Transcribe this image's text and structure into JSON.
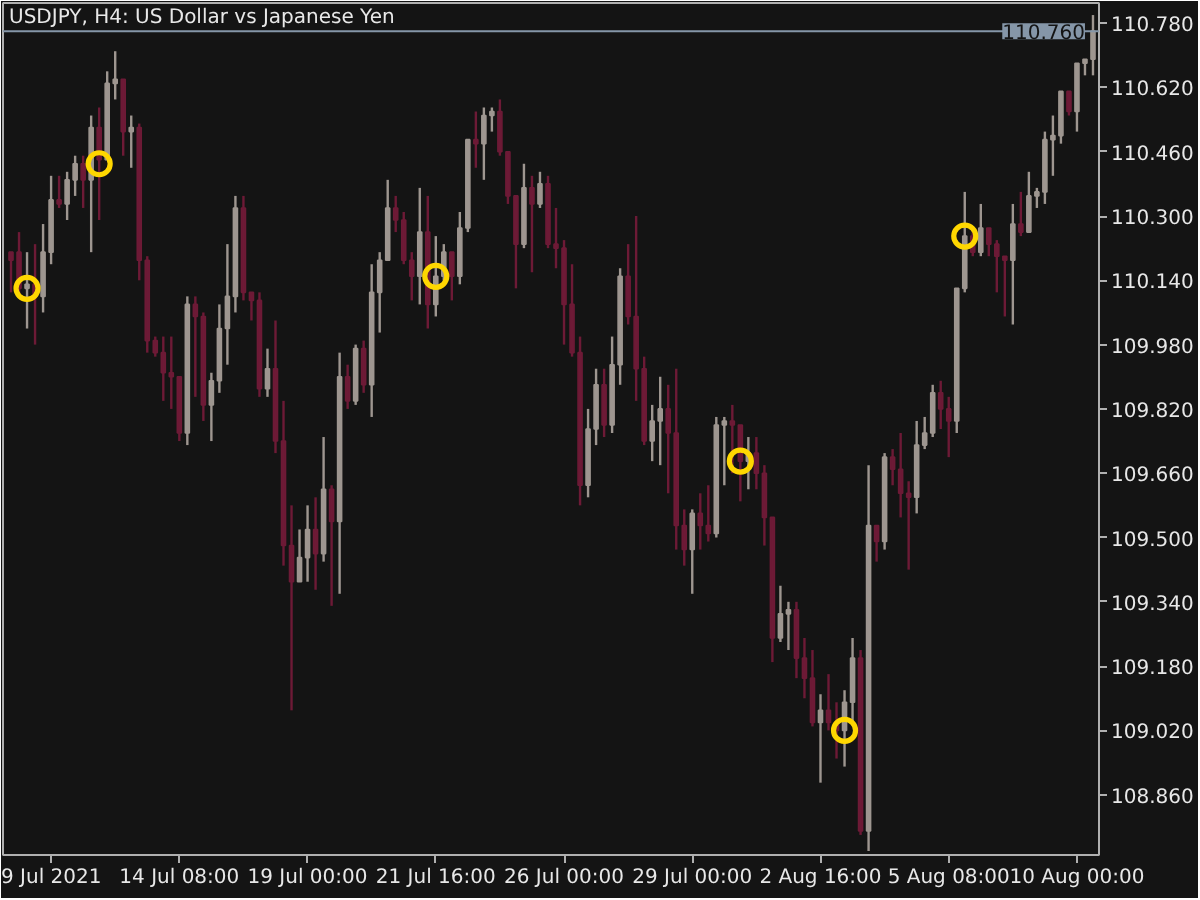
{
  "chart_data": {
    "type": "candlestick",
    "title": "USDJPY, H4:  US Dollar vs Japanese Yen",
    "categories": [
      null,
      null,
      null,
      null,
      null,
      "9 Jul 2021",
      null,
      null,
      null,
      null,
      null,
      null,
      null,
      null,
      null,
      null,
      null,
      null,
      null,
      null,
      null,
      "14 Jul 08:00",
      null,
      null,
      null,
      null,
      null,
      null,
      null,
      null,
      null,
      null,
      null,
      null,
      null,
      null,
      null,
      "19 Jul 00:00",
      null,
      null,
      null,
      null,
      null,
      null,
      null,
      null,
      null,
      null,
      null,
      null,
      null,
      null,
      null,
      "21 Jul 16:00",
      null,
      null,
      null,
      null,
      null,
      null,
      null,
      null,
      null,
      null,
      null,
      null,
      null,
      null,
      null,
      "26 Jul 00:00",
      null,
      null,
      null,
      null,
      null,
      null,
      null,
      null,
      null,
      null,
      null,
      null,
      null,
      null,
      null,
      "29 Jul 00:00",
      null,
      null,
      null,
      null,
      null,
      null,
      null,
      null,
      null,
      null,
      null,
      null,
      null,
      null,
      null,
      "2 Aug 16:00",
      null,
      null,
      null,
      null,
      null,
      null,
      null,
      null,
      null,
      null,
      null,
      null,
      null,
      null,
      null,
      "5 Aug 08:00",
      null,
      null,
      null,
      null,
      null,
      null,
      null,
      null,
      null,
      null,
      null,
      null,
      null,
      null,
      null,
      "10 Aug 00:00",
      null,
      null
    ],
    "ohlc": [
      [
        110.21,
        110.21,
        110.11,
        110.19
      ],
      [
        110.21,
        110.26,
        110.1,
        110.12
      ],
      [
        110.12,
        110.21,
        110.02,
        110.13
      ],
      [
        110.13,
        110.23,
        109.98,
        110.1
      ],
      [
        110.1,
        110.28,
        110.06,
        110.21
      ],
      [
        110.21,
        110.4,
        110.18,
        110.34
      ],
      [
        110.34,
        110.4,
        110.32,
        110.33
      ],
      [
        110.33,
        110.41,
        110.29,
        110.39
      ],
      [
        110.39,
        110.45,
        110.35,
        110.43
      ],
      [
        110.43,
        110.45,
        110.32,
        110.39
      ],
      [
        110.39,
        110.55,
        110.21,
        110.52
      ],
      [
        110.52,
        110.57,
        110.29,
        110.44
      ],
      [
        110.44,
        110.66,
        110.44,
        110.63
      ],
      [
        110.63,
        110.71,
        110.59,
        110.64
      ],
      [
        110.64,
        110.64,
        110.45,
        110.51
      ],
      [
        110.51,
        110.55,
        110.42,
        110.52
      ],
      [
        110.52,
        110.53,
        110.14,
        110.19
      ],
      [
        110.19,
        110.2,
        109.96,
        109.99
      ],
      [
        109.99,
        110.0,
        109.95,
        109.96
      ],
      [
        109.96,
        110.0,
        109.84,
        109.91
      ],
      [
        109.91,
        110.0,
        109.82,
        109.9
      ],
      [
        109.9,
        109.9,
        109.74,
        109.76
      ],
      [
        109.76,
        110.1,
        109.73,
        110.08
      ],
      [
        110.08,
        110.1,
        109.85,
        110.05
      ],
      [
        110.05,
        110.06,
        109.79,
        109.83
      ],
      [
        109.83,
        109.91,
        109.74,
        109.89
      ],
      [
        109.89,
        110.08,
        109.86,
        110.02
      ],
      [
        110.02,
        110.23,
        109.93,
        110.1
      ],
      [
        110.1,
        110.35,
        110.06,
        110.32
      ],
      [
        110.32,
        110.35,
        110.09,
        110.11
      ],
      [
        110.11,
        110.11,
        110.04,
        110.09
      ],
      [
        110.09,
        110.11,
        109.85,
        109.87
      ],
      [
        109.87,
        109.97,
        109.85,
        109.92
      ],
      [
        109.92,
        110.04,
        109.71,
        109.74
      ],
      [
        109.74,
        109.84,
        109.43,
        109.48
      ],
      [
        109.48,
        109.58,
        109.07,
        109.39
      ],
      [
        109.39,
        109.52,
        109.39,
        109.45
      ],
      [
        109.45,
        109.58,
        109.39,
        109.52
      ],
      [
        109.52,
        109.6,
        109.37,
        109.46
      ],
      [
        109.46,
        109.75,
        109.44,
        109.62
      ],
      [
        109.62,
        109.63,
        109.33,
        109.54
      ],
      [
        109.54,
        109.96,
        109.36,
        109.9
      ],
      [
        109.9,
        109.93,
        109.82,
        109.84
      ],
      [
        109.84,
        109.98,
        109.83,
        109.97
      ],
      [
        109.97,
        109.99,
        109.86,
        109.88
      ],
      [
        109.88,
        110.18,
        109.8,
        110.11
      ],
      [
        110.11,
        110.21,
        110.01,
        110.19
      ],
      [
        110.19,
        110.39,
        110.19,
        110.32
      ],
      [
        110.32,
        110.35,
        110.26,
        110.29
      ],
      [
        110.29,
        110.31,
        110.18,
        110.19
      ],
      [
        110.19,
        110.21,
        110.09,
        110.15
      ],
      [
        110.15,
        110.37,
        110.08,
        110.26
      ],
      [
        110.26,
        110.35,
        110.02,
        110.08
      ],
      [
        110.08,
        110.25,
        110.05,
        110.15
      ],
      [
        110.15,
        110.23,
        110.14,
        110.21
      ],
      [
        110.21,
        110.21,
        110.09,
        110.15
      ],
      [
        110.15,
        110.31,
        110.13,
        110.27
      ],
      [
        110.27,
        110.49,
        110.26,
        110.49
      ],
      [
        110.49,
        110.56,
        110.42,
        110.48
      ],
      [
        110.48,
        110.57,
        110.39,
        110.55
      ],
      [
        110.55,
        110.57,
        110.51,
        110.56
      ],
      [
        110.56,
        110.59,
        110.45,
        110.46
      ],
      [
        110.46,
        110.46,
        110.33,
        110.35
      ],
      [
        110.35,
        110.35,
        110.12,
        110.23
      ],
      [
        110.23,
        110.43,
        110.22,
        110.37
      ],
      [
        110.37,
        110.4,
        110.16,
        110.33
      ],
      [
        110.33,
        110.41,
        110.32,
        110.38
      ],
      [
        110.38,
        110.4,
        110.22,
        110.23
      ],
      [
        110.23,
        110.32,
        110.17,
        110.22
      ],
      [
        110.22,
        110.24,
        109.98,
        110.08
      ],
      [
        110.08,
        110.18,
        109.95,
        109.96
      ],
      [
        109.96,
        110.0,
        109.58,
        109.63
      ],
      [
        109.63,
        109.82,
        109.6,
        109.77
      ],
      [
        109.77,
        109.92,
        109.73,
        109.88
      ],
      [
        109.88,
        109.92,
        109.75,
        109.78
      ],
      [
        109.78,
        110.0,
        109.76,
        109.93
      ],
      [
        109.93,
        110.17,
        109.88,
        110.15
      ],
      [
        110.15,
        110.23,
        110.03,
        110.05
      ],
      [
        110.05,
        110.3,
        109.84,
        109.92
      ],
      [
        109.92,
        109.95,
        109.73,
        109.74
      ],
      [
        109.74,
        109.83,
        109.69,
        109.79
      ],
      [
        109.79,
        109.9,
        109.68,
        109.82
      ],
      [
        109.82,
        109.88,
        109.61,
        109.76
      ],
      [
        109.76,
        109.92,
        109.47,
        109.53
      ],
      [
        109.53,
        109.57,
        109.43,
        109.47
      ],
      [
        109.47,
        109.57,
        109.36,
        109.56
      ],
      [
        109.56,
        109.61,
        109.47,
        109.53
      ],
      [
        109.53,
        109.63,
        109.49,
        109.51
      ],
      [
        109.51,
        109.8,
        109.5,
        109.78
      ],
      [
        109.78,
        109.8,
        109.63,
        109.79
      ],
      [
        109.79,
        109.83,
        109.66,
        109.78
      ],
      [
        109.78,
        109.78,
        109.59,
        109.69
      ],
      [
        109.69,
        109.75,
        109.62,
        109.71
      ],
      [
        109.71,
        109.75,
        109.62,
        109.66
      ],
      [
        109.66,
        109.68,
        109.48,
        109.55
      ],
      [
        109.55,
        109.55,
        109.19,
        109.25
      ],
      [
        109.25,
        109.38,
        109.24,
        109.31
      ],
      [
        109.31,
        109.34,
        109.22,
        109.32
      ],
      [
        109.32,
        109.34,
        109.15,
        109.2
      ],
      [
        109.2,
        109.25,
        109.1,
        109.15
      ],
      [
        109.15,
        109.22,
        109.03,
        109.04
      ],
      [
        109.04,
        109.11,
        108.89,
        109.07
      ],
      [
        109.07,
        109.16,
        109.02,
        109.04
      ],
      [
        109.04,
        109.09,
        108.95,
        109.02
      ],
      [
        109.02,
        109.12,
        108.93,
        109.09
      ],
      [
        109.09,
        109.25,
        109.04,
        109.2
      ],
      [
        109.2,
        109.22,
        108.76,
        108.77
      ],
      [
        108.77,
        109.68,
        108.72,
        109.53
      ],
      [
        109.53,
        109.53,
        109.44,
        109.49
      ],
      [
        109.49,
        109.71,
        109.47,
        109.7
      ],
      [
        109.7,
        109.72,
        109.63,
        109.67
      ],
      [
        109.67,
        109.76,
        109.55,
        109.61
      ],
      [
        109.61,
        109.64,
        109.42,
        109.6
      ],
      [
        109.6,
        109.79,
        109.56,
        109.73
      ],
      [
        109.73,
        109.8,
        109.72,
        109.76
      ],
      [
        109.76,
        109.88,
        109.75,
        109.86
      ],
      [
        109.86,
        109.89,
        109.77,
        109.82
      ],
      [
        109.82,
        109.85,
        109.7,
        109.79
      ],
      [
        109.79,
        110.12,
        109.76,
        110.12
      ],
      [
        110.12,
        110.36,
        110.11,
        110.25
      ],
      [
        110.25,
        110.27,
        110.2,
        110.21
      ],
      [
        110.21,
        110.33,
        110.2,
        110.27
      ],
      [
        110.27,
        110.27,
        110.2,
        110.23
      ],
      [
        110.23,
        110.24,
        110.11,
        110.2
      ],
      [
        110.2,
        110.2,
        110.05,
        110.19
      ],
      [
        110.19,
        110.33,
        110.03,
        110.28
      ],
      [
        110.28,
        110.36,
        110.25,
        110.26
      ],
      [
        110.26,
        110.41,
        110.26,
        110.35
      ],
      [
        110.35,
        110.37,
        110.32,
        110.36
      ],
      [
        110.36,
        110.51,
        110.33,
        110.49
      ],
      [
        110.49,
        110.55,
        110.4,
        110.5
      ],
      [
        110.5,
        110.61,
        110.48,
        110.61
      ],
      [
        110.61,
        110.61,
        110.55,
        110.56
      ],
      [
        110.56,
        110.68,
        110.51,
        110.68
      ],
      [
        110.68,
        110.69,
        110.65,
        110.69
      ],
      [
        110.69,
        110.8,
        110.65,
        110.76
      ]
    ],
    "colors": [
      "#6d1a36",
      "#6d1a36",
      "#9e9690",
      "#6d1a36",
      "#9e9690",
      "#9e9690",
      "#6d1a36",
      "#9e9690",
      "#9e9690",
      "#6d1a36",
      "#9e9690",
      "#6d1a36",
      "#9e9690",
      "#9e9690",
      "#6d1a36",
      "#9e9690",
      "#6d1a36",
      "#6d1a36",
      "#6d1a36",
      "#6d1a36",
      "#6d1a36",
      "#6d1a36",
      "#9e9690",
      "#6d1a36",
      "#6d1a36",
      "#9e9690",
      "#9e9690",
      "#9e9690",
      "#9e9690",
      "#6d1a36",
      "#6d1a36",
      "#6d1a36",
      "#9e9690",
      "#6d1a36",
      "#6d1a36",
      "#6d1a36",
      "#9e9690",
      "#9e9690",
      "#6d1a36",
      "#9e9690",
      "#6d1a36",
      "#9e9690",
      "#6d1a36",
      "#9e9690",
      "#6d1a36",
      "#9e9690",
      "#9e9690",
      "#9e9690",
      "#6d1a36",
      "#6d1a36",
      "#6d1a36",
      "#9e9690",
      "#6d1a36",
      "#9e9690",
      "#9e9690",
      "#6d1a36",
      "#9e9690",
      "#9e9690",
      "#6d1a36",
      "#9e9690",
      "#9e9690",
      "#6d1a36",
      "#6d1a36",
      "#6d1a36",
      "#9e9690",
      "#6d1a36",
      "#9e9690",
      "#6d1a36",
      "#6d1a36",
      "#6d1a36",
      "#6d1a36",
      "#6d1a36",
      "#9e9690",
      "#9e9690",
      "#6d1a36",
      "#9e9690",
      "#9e9690",
      "#6d1a36",
      "#6d1a36",
      "#6d1a36",
      "#9e9690",
      "#9e9690",
      "#6d1a36",
      "#6d1a36",
      "#6d1a36",
      "#9e9690",
      "#6d1a36",
      "#6d1a36",
      "#9e9690",
      "#9e9690",
      "#6d1a36",
      "#6d1a36",
      "#9e9690",
      "#6d1a36",
      "#6d1a36",
      "#6d1a36",
      "#9e9690",
      "#9e9690",
      "#6d1a36",
      "#6d1a36",
      "#6d1a36",
      "#9e9690",
      "#6d1a36",
      "#6d1a36",
      "#9e9690",
      "#9e9690",
      "#6d1a36",
      "#9e9690",
      "#6d1a36",
      "#9e9690",
      "#6d1a36",
      "#6d1a36",
      "#6d1a36",
      "#9e9690",
      "#9e9690",
      "#9e9690",
      "#6d1a36",
      "#6d1a36",
      "#9e9690",
      "#9e9690",
      "#6d1a36",
      "#9e9690",
      "#6d1a36",
      "#6d1a36",
      "#6d1a36",
      "#9e9690",
      "#6d1a36",
      "#9e9690",
      "#9e9690",
      "#9e9690",
      "#9e9690",
      "#9e9690",
      "#6d1a36",
      "#9e9690",
      "#9e9690",
      "#9e9690"
    ],
    "series": [
      {
        "type": "scatter",
        "color": "#ffd700",
        "values": [
          null,
          null,
          110.12,
          null,
          null,
          null,
          null,
          null,
          null,
          null,
          null,
          110.43,
          null,
          null,
          null,
          null,
          null,
          null,
          null,
          null,
          null,
          null,
          null,
          null,
          null,
          null,
          null,
          null,
          null,
          null,
          null,
          null,
          null,
          null,
          null,
          null,
          null,
          null,
          null,
          null,
          null,
          null,
          null,
          null,
          null,
          null,
          null,
          null,
          null,
          null,
          null,
          null,
          null,
          110.15,
          null,
          null,
          null,
          null,
          null,
          null,
          null,
          null,
          null,
          null,
          null,
          null,
          null,
          null,
          null,
          null,
          null,
          null,
          null,
          null,
          null,
          null,
          null,
          null,
          null,
          null,
          null,
          null,
          null,
          null,
          null,
          null,
          null,
          null,
          null,
          null,
          null,
          109.69,
          null,
          null,
          null,
          null,
          null,
          null,
          null,
          null,
          null,
          null,
          null,
          null,
          109.02,
          null,
          null,
          null,
          null,
          null,
          null,
          null,
          null,
          null,
          null,
          null,
          null,
          null,
          null,
          110.25,
          null,
          null,
          null,
          null,
          null,
          null,
          null,
          null,
          null,
          null,
          null,
          null,
          null,
          null,
          null,
          null
        ]
      }
    ],
    "marker": "circle",
    "ylim": [
      108.71,
      110.83
    ],
    "yticks": [
      {
        "value": 108.86,
        "label": "108.860"
      },
      {
        "value": 109.02,
        "label": "109.020"
      },
      {
        "value": 109.18,
        "label": "109.180"
      },
      {
        "value": 109.34,
        "label": "109.340"
      },
      {
        "value": 109.5,
        "label": "109.500"
      },
      {
        "value": 109.66,
        "label": "109.660"
      },
      {
        "value": 109.82,
        "label": "109.820"
      },
      {
        "value": 109.98,
        "label": "109.980"
      },
      {
        "value": 110.14,
        "label": "110.140"
      },
      {
        "value": 110.3,
        "label": "110.300"
      },
      {
        "value": 110.46,
        "label": "110.460"
      },
      {
        "value": 110.62,
        "label": "110.620"
      },
      {
        "value": 110.78,
        "label": "110.780"
      }
    ],
    "ref_lines": [
      {
        "axis": "y",
        "value": 110.76,
        "label": "110.760",
        "color": "#8596a8"
      }
    ],
    "grid": false
  }
}
